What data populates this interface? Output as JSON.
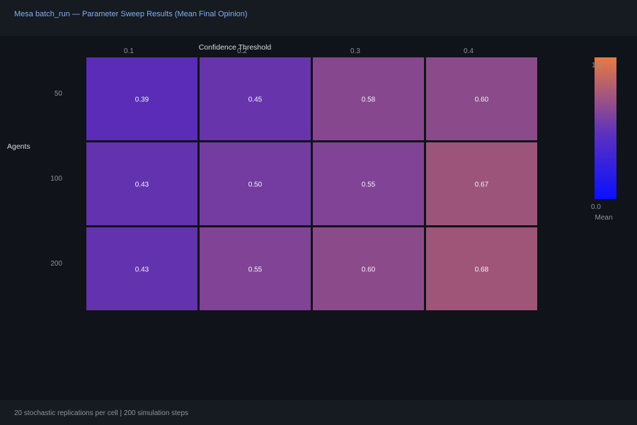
{
  "header": {
    "title": "Mesa batch_run — Parameter Sweep Results (Mean Final Opinion)"
  },
  "footer": {
    "text": "20 stochastic replications per cell  |  200 simulation steps"
  },
  "chart_data": {
    "type": "heatmap",
    "title": "",
    "xlabel": "Confidence Threshold",
    "ylabel": "Agents",
    "x_categories": [
      "0.1",
      "0.2",
      "0.3",
      "0.4"
    ],
    "y_categories": [
      "50",
      "100",
      "200"
    ],
    "values": [
      [
        0.39,
        0.45,
        0.58,
        0.6
      ],
      [
        0.43,
        0.5,
        0.55,
        0.67
      ],
      [
        0.43,
        0.55,
        0.6,
        0.68
      ]
    ],
    "value_labels": [
      [
        "0.39",
        "0.45",
        "0.58",
        "0.60"
      ],
      [
        "0.43",
        "0.50",
        "0.55",
        "0.67"
      ],
      [
        "0.43",
        "0.55",
        "0.60",
        "0.68"
      ]
    ],
    "colorbar": {
      "label": "Mean",
      "min_label": "0.0",
      "max_label": "1.0",
      "range": [
        0.0,
        1.0
      ],
      "color_low": "#0a10ff",
      "color_mid": "#5a30c0",
      "color_high": "#e87a40"
    },
    "grid": false,
    "legend": "right"
  }
}
